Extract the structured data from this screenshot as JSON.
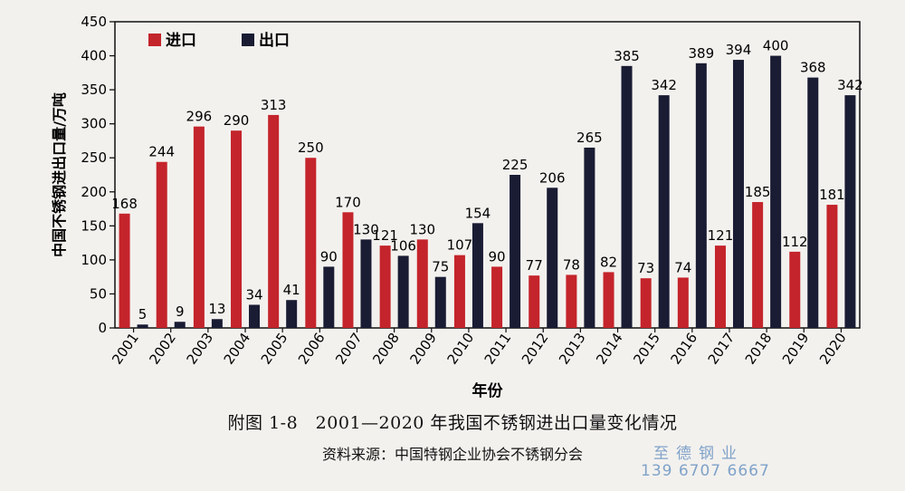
{
  "chart_data": {
    "type": "bar",
    "ylabel": "中国不锈钢进出口量/万吨",
    "xlabel": "年份",
    "ylim": [
      0,
      450
    ],
    "yticks": [
      0,
      50,
      100,
      150,
      200,
      250,
      300,
      350,
      400,
      450
    ],
    "legend_position": "top-left",
    "categories": [
      "2001",
      "2002",
      "2003",
      "2004",
      "2005",
      "2006",
      "2007",
      "2008",
      "2009",
      "2010",
      "2011",
      "2012",
      "2013",
      "2014",
      "2015",
      "2016",
      "2017",
      "2018",
      "2019",
      "2020"
    ],
    "series": [
      {
        "name": "进口",
        "color": "#c4242b",
        "values": [
          168,
          244,
          296,
          290,
          313,
          250,
          170,
          121,
          130,
          107,
          90,
          77,
          78,
          82,
          73,
          74,
          121,
          185,
          112,
          181
        ]
      },
      {
        "name": "出口",
        "color": "#191c33",
        "values": [
          5,
          9,
          13,
          34,
          41,
          90,
          130,
          106,
          75,
          154,
          225,
          206,
          265,
          385,
          342,
          389,
          394,
          400,
          368,
          342
        ]
      }
    ]
  },
  "caption": "附图 1-8　2001—2020 年我国不锈钢进出口量变化情况",
  "source": "资料来源：中国特钢企业协会不锈钢分会",
  "watermark": {
    "name": "至德钢业",
    "phone": "139 6707 6667"
  }
}
